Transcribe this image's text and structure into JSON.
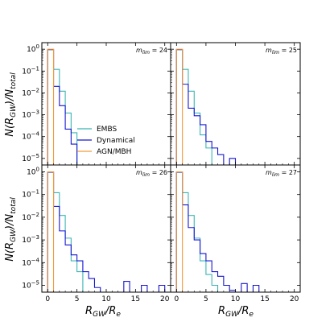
{
  "chart_data": {
    "type": "histogram",
    "xlabel": "R_GW/R_e",
    "ylabel": "N(R_GW)/N_total",
    "x_range": [
      -1,
      21
    ],
    "y_range": [
      5e-06,
      2
    ],
    "y_scale": "log",
    "x_ticks": [
      0,
      5,
      10,
      15,
      20
    ],
    "y_ticks": [
      {
        "value": 1,
        "label": "10^0"
      },
      {
        "value": 0.1,
        "label": "10^-1"
      },
      {
        "value": 0.01,
        "label": "10^-2"
      },
      {
        "value": 0.001,
        "label": "10^-3"
      },
      {
        "value": 0.0001,
        "label": "10^-4"
      },
      {
        "value": 1e-05,
        "label": "10^-5"
      }
    ],
    "bin_width": 1,
    "legend": {
      "placement": "center-left of top-left panel",
      "entries": [
        {
          "name": "EMBS",
          "color": "#3bb5b5"
        },
        {
          "name": "Dynamical",
          "color": "#1616d0"
        },
        {
          "name": "AGN/MBH",
          "color": "#f29a3a"
        }
      ]
    },
    "panels": [
      {
        "label": "m_lim = 24",
        "series": [
          {
            "name": "EMBS",
            "bin_edges_start": 0,
            "values": [
              0.95,
              0.12,
              0.012,
              0.0012,
              0.00015,
              4.5e-06
            ]
          },
          {
            "name": "Dynamical",
            "bin_edges_start": 0,
            "values": [
              0.97,
              0.02,
              0.0026,
              0.00022,
              4.5e-05
            ]
          },
          {
            "name": "AGN/MBH",
            "bin_edges_start": 0,
            "values": [
              1.0
            ]
          }
        ]
      },
      {
        "label": "m_lim = 25",
        "series": [
          {
            "name": "EMBS",
            "bin_edges_start": 0,
            "values": [
              0.95,
              0.12,
              0.012,
              0.0012,
              0.00012,
              3e-05,
              4.5e-06
            ]
          },
          {
            "name": "Dynamical",
            "bin_edges_start": 0,
            "values": [
              0.97,
              0.025,
              0.002,
              0.0009,
              0.00035,
              6e-05,
              3e-05,
              1.5e-05,
              4.5e-06,
              1e-05,
              4.5e-06
            ]
          },
          {
            "name": "AGN/MBH",
            "bin_edges_start": 0,
            "values": [
              1.0
            ]
          }
        ]
      },
      {
        "label": "m_lim = 26",
        "series": [
          {
            "name": "EMBS",
            "bin_edges_start": 0,
            "values": [
              0.95,
              0.12,
              0.012,
              0.0012,
              0.00012,
              4e-05,
              4.5e-06
            ]
          },
          {
            "name": "Dynamical",
            "bin_edges_start": 0,
            "values": [
              0.97,
              0.03,
              0.0025,
              0.0006,
              0.00022,
              0.00012,
              4e-05,
              2e-05,
              8e-06,
              4e-06,
              4.5e-06,
              4.5e-06,
              4.5e-06,
              1.5e-05,
              4.5e-06,
              4.5e-06,
              1e-05,
              4.5e-06,
              4.5e-06,
              1e-05
            ]
          },
          {
            "name": "AGN/MBH",
            "bin_edges_start": 0,
            "values": [
              1.0
            ]
          }
        ]
      },
      {
        "label": "m_lim = 27",
        "series": [
          {
            "name": "EMBS",
            "bin_edges_start": 0,
            "values": [
              0.95,
              0.12,
              0.012,
              0.0012,
              0.00012,
              3e-05,
              1e-05,
              4.5e-06
            ]
          },
          {
            "name": "Dynamical",
            "bin_edges_start": 0,
            "values": [
              0.97,
              0.035,
              0.0035,
              0.001,
              0.00025,
              0.00012,
              4e-05,
              2.5e-05,
              1e-05,
              6e-06,
              4.5e-06,
              1.2e-05,
              4.5e-06,
              1e-05,
              4.5e-06,
              4.5e-06,
              4.5e-06,
              4.5e-06,
              4.5e-06
            ]
          },
          {
            "name": "AGN/MBH",
            "bin_edges_start": 0,
            "values": [
              1.0
            ]
          }
        ]
      }
    ]
  }
}
